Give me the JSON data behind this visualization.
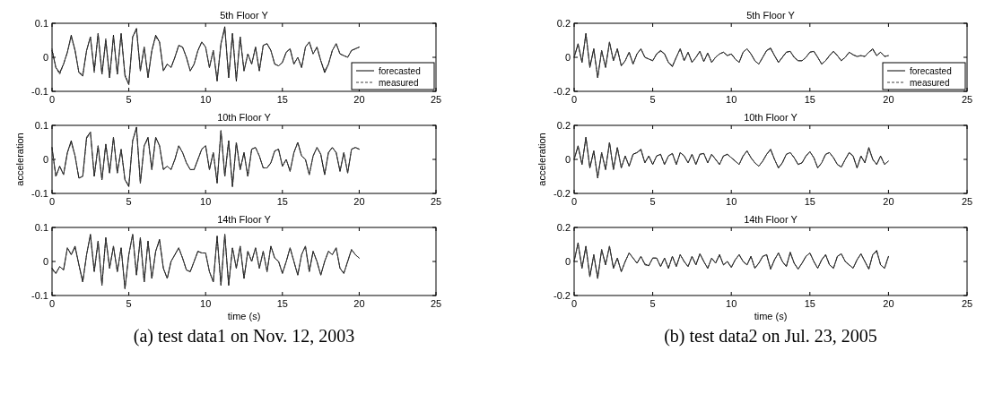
{
  "chart_data": [
    {
      "type": "line",
      "title": "5th Floor Y",
      "xlim": [
        0,
        25
      ],
      "xticks": [
        0,
        5,
        10,
        15,
        20,
        25
      ],
      "ylim": [
        -0.1,
        0.1
      ],
      "yticks": [
        -0.1,
        0,
        0.1
      ],
      "legend": "bottom right",
      "x": [
        0,
        0.25,
        0.5,
        0.75,
        1,
        1.25,
        1.5,
        1.75,
        2,
        2.25,
        2.5,
        2.75,
        3,
        3.25,
        3.5,
        3.75,
        4,
        4.25,
        4.5,
        4.75,
        5,
        5.25,
        5.5,
        5.75,
        6,
        6.25,
        6.5,
        6.75,
        7,
        7.25,
        7.5,
        7.75,
        8,
        8.25,
        8.5,
        8.75,
        9,
        9.25,
        9.5,
        9.75,
        10,
        10.25,
        10.5,
        10.75,
        11,
        11.25,
        11.5,
        11.75,
        12,
        12.25,
        12.5,
        12.75,
        13,
        13.25,
        13.5,
        13.75,
        14,
        14.25,
        14.5,
        14.75,
        15,
        15.25,
        15.5,
        15.75,
        16,
        16.25,
        16.5,
        16.75,
        17,
        17.25,
        17.5,
        17.75,
        18,
        18.25,
        18.5,
        18.75,
        19,
        19.25,
        19.5,
        19.75,
        20
      ],
      "series": [
        {
          "name": "forecasted",
          "color": "#000000",
          "line_style": "solid",
          "values": [
            0.02,
            -0.03,
            -0.045,
            -0.02,
            0.015,
            0.065,
            0.02,
            -0.045,
            -0.055,
            0.02,
            0.06,
            -0.04,
            0.07,
            -0.05,
            0.05,
            -0.06,
            0.065,
            -0.05,
            0.07,
            -0.055,
            -0.08,
            0.06,
            0.085,
            -0.04,
            0.03,
            -0.06,
            0.02,
            0.065,
            0.045,
            -0.04,
            -0.02,
            -0.03,
            0.0,
            0.035,
            0.03,
            0.0,
            -0.04,
            -0.02,
            0.02,
            0.045,
            0.03,
            -0.03,
            0.02,
            -0.07,
            0.04,
            0.09,
            -0.06,
            0.07,
            -0.07,
            0.06,
            -0.04,
            0.01,
            -0.02,
            0.03,
            -0.04,
            0.035,
            0.04,
            0.02,
            -0.02,
            -0.025,
            -0.015,
            0.015,
            0.025,
            -0.02,
            0.0,
            -0.03,
            0.03,
            0.045,
            0.01,
            0.03,
            -0.01,
            -0.045,
            -0.02,
            0.02,
            0.04,
            0.01,
            0.005,
            0.0,
            0.02,
            0.025,
            0.03
          ]
        },
        {
          "name": "measured",
          "color": "#404040",
          "line_style": "dashed",
          "values": [
            0.025,
            -0.03,
            -0.05,
            -0.02,
            0.015,
            0.06,
            0.02,
            -0.045,
            -0.05,
            0.02,
            0.06,
            -0.045,
            0.07,
            -0.05,
            0.055,
            -0.06,
            0.06,
            -0.05,
            0.07,
            -0.05,
            -0.08,
            0.06,
            0.08,
            -0.04,
            0.03,
            -0.055,
            0.02,
            0.06,
            0.045,
            -0.04,
            -0.02,
            -0.03,
            0.0,
            0.035,
            0.03,
            0.0,
            -0.04,
            -0.02,
            0.02,
            0.045,
            0.03,
            -0.03,
            0.02,
            -0.065,
            0.04,
            0.085,
            -0.06,
            0.07,
            -0.065,
            0.06,
            -0.04,
            0.01,
            -0.02,
            0.03,
            -0.04,
            0.035,
            0.04,
            0.02,
            -0.02,
            -0.025,
            -0.015,
            0.015,
            0.025,
            -0.02,
            0.0,
            -0.03,
            0.03,
            0.045,
            0.01,
            0.03,
            -0.01,
            -0.04,
            -0.02,
            0.02,
            0.04,
            0.01,
            0.005,
            0.0,
            0.02,
            0.025,
            0.03
          ]
        }
      ]
    },
    {
      "type": "line",
      "title": "10th Floor Y",
      "ylabel": "acceleration",
      "xlim": [
        0,
        25
      ],
      "xticks": [
        0,
        5,
        10,
        15,
        20,
        25
      ],
      "ylim": [
        -0.1,
        0.1
      ],
      "yticks": [
        -0.1,
        0,
        0.1
      ],
      "x": [
        0,
        0.25,
        0.5,
        0.75,
        1,
        1.25,
        1.5,
        1.75,
        2,
        2.25,
        2.5,
        2.75,
        3,
        3.25,
        3.5,
        3.75,
        4,
        4.25,
        4.5,
        4.75,
        5,
        5.25,
        5.5,
        5.75,
        6,
        6.25,
        6.5,
        6.75,
        7,
        7.25,
        7.5,
        7.75,
        8,
        8.25,
        8.5,
        8.75,
        9,
        9.25,
        9.5,
        9.75,
        10,
        10.25,
        10.5,
        10.75,
        11,
        11.25,
        11.5,
        11.75,
        12,
        12.25,
        12.5,
        12.75,
        13,
        13.25,
        13.5,
        13.75,
        14,
        14.25,
        14.5,
        14.75,
        15,
        15.25,
        15.5,
        15.75,
        16,
        16.25,
        16.5,
        16.75,
        17,
        17.25,
        17.5,
        17.75,
        18,
        18.25,
        18.5,
        18.75,
        19,
        19.25,
        19.5,
        19.75,
        20
      ],
      "series": [
        {
          "color": "#000000",
          "line_style": "solid",
          "values": [
            0.035,
            -0.05,
            -0.02,
            -0.045,
            0.02,
            0.055,
            0.01,
            -0.055,
            -0.05,
            0.065,
            0.08,
            -0.05,
            0.04,
            -0.06,
            0.045,
            -0.04,
            0.065,
            -0.04,
            0.03,
            -0.06,
            -0.08,
            0.055,
            0.095,
            -0.07,
            0.04,
            0.065,
            -0.03,
            0.065,
            0.04,
            -0.03,
            -0.02,
            -0.03,
            0.0,
            0.04,
            0.02,
            -0.01,
            -0.03,
            -0.03,
            0.0,
            0.03,
            0.04,
            -0.03,
            0.02,
            -0.07,
            0.085,
            -0.05,
            0.055,
            -0.08,
            0.05,
            -0.03,
            0.02,
            -0.05,
            0.03,
            0.035,
            0.01,
            -0.025,
            -0.025,
            -0.01,
            0.025,
            0.03,
            -0.02,
            0.0,
            -0.035,
            0.02,
            0.05,
            0.01,
            0.0,
            -0.045,
            0.01,
            0.035,
            0.015,
            -0.045,
            0.02,
            0.035,
            0.02,
            -0.035,
            0.02,
            -0.04,
            0.03,
            0.035,
            0.03
          ]
        },
        {
          "color": "#404040",
          "line_style": "dashed",
          "values": [
            0.03,
            -0.05,
            -0.02,
            -0.045,
            0.02,
            0.05,
            0.01,
            -0.055,
            -0.05,
            0.06,
            0.08,
            -0.05,
            0.04,
            -0.06,
            0.045,
            -0.04,
            0.065,
            -0.04,
            0.03,
            -0.06,
            -0.075,
            0.055,
            0.09,
            -0.07,
            0.04,
            0.06,
            -0.03,
            0.065,
            0.04,
            -0.03,
            -0.02,
            -0.03,
            0.0,
            0.04,
            0.02,
            -0.01,
            -0.03,
            -0.03,
            0.0,
            0.03,
            0.04,
            -0.03,
            0.02,
            -0.065,
            0.085,
            -0.05,
            0.055,
            -0.08,
            0.05,
            -0.03,
            0.02,
            -0.05,
            0.03,
            0.035,
            0.01,
            -0.025,
            -0.025,
            -0.01,
            0.025,
            0.03,
            -0.02,
            0.0,
            -0.035,
            0.02,
            0.05,
            0.01,
            0.0,
            -0.045,
            0.01,
            0.035,
            0.015,
            -0.045,
            0.02,
            0.035,
            0.02,
            -0.035,
            0.02,
            -0.04,
            0.03,
            0.035,
            0.03
          ]
        }
      ]
    },
    {
      "type": "line",
      "title": "14th Floor Y",
      "xlabel": "time (s)",
      "annotations": [
        "(a) test data1 on Nov. 12, 2003"
      ],
      "xlim": [
        0,
        25
      ],
      "xticks": [
        0,
        5,
        10,
        15,
        20,
        25
      ],
      "ylim": [
        -0.1,
        0.1
      ],
      "yticks": [
        -0.1,
        0,
        0.1
      ],
      "x": [
        0,
        0.25,
        0.5,
        0.75,
        1,
        1.25,
        1.5,
        1.75,
        2,
        2.25,
        2.5,
        2.75,
        3,
        3.25,
        3.5,
        3.75,
        4,
        4.25,
        4.5,
        4.75,
        5,
        5.25,
        5.5,
        5.75,
        6,
        6.25,
        6.5,
        6.75,
        7,
        7.25,
        7.5,
        7.75,
        8,
        8.25,
        8.5,
        8.75,
        9,
        9.25,
        9.5,
        9.75,
        10,
        10.25,
        10.5,
        10.75,
        11,
        11.25,
        11.5,
        11.75,
        12,
        12.25,
        12.5,
        12.75,
        13,
        13.25,
        13.5,
        13.75,
        14,
        14.25,
        14.5,
        14.75,
        15,
        15.25,
        15.5,
        15.75,
        16,
        16.25,
        16.5,
        16.75,
        17,
        17.25,
        17.5,
        17.75,
        18,
        18.25,
        18.5,
        18.75,
        19,
        19.25,
        19.5,
        19.75,
        20
      ],
      "series": [
        {
          "color": "#000000",
          "line_style": "solid",
          "values": [
            -0.02,
            -0.035,
            -0.015,
            -0.025,
            0.04,
            0.02,
            0.045,
            -0.01,
            -0.06,
            0.02,
            0.08,
            -0.03,
            0.06,
            -0.07,
            0.07,
            -0.02,
            0.045,
            -0.03,
            0.04,
            -0.08,
            0.02,
            0.08,
            -0.04,
            0.07,
            -0.06,
            0.06,
            -0.05,
            0.03,
            0.065,
            -0.02,
            -0.05,
            0.0,
            0.02,
            0.04,
            0.01,
            -0.025,
            -0.03,
            0.0,
            0.03,
            0.025,
            0.025,
            -0.03,
            -0.06,
            0.075,
            -0.07,
            0.08,
            -0.07,
            0.04,
            -0.02,
            0.045,
            -0.05,
            0.03,
            0.0,
            0.04,
            -0.02,
            0.03,
            -0.03,
            0.045,
            0.01,
            0.0,
            -0.035,
            0.0,
            0.04,
            0.0,
            -0.04,
            0.02,
            0.045,
            -0.03,
            0.03,
            0.0,
            -0.04,
            0.0,
            0.03,
            0.02,
            0.04,
            -0.02,
            -0.035,
            0.0,
            0.035,
            0.02,
            0.01
          ]
        },
        {
          "color": "#404040",
          "line_style": "dashed",
          "values": [
            -0.025,
            -0.035,
            -0.015,
            -0.025,
            0.04,
            0.02,
            0.04,
            -0.01,
            -0.06,
            0.02,
            0.075,
            -0.03,
            0.06,
            -0.07,
            0.07,
            -0.02,
            0.045,
            -0.03,
            0.04,
            -0.08,
            0.02,
            0.08,
            -0.04,
            0.07,
            -0.06,
            0.06,
            -0.05,
            0.03,
            0.06,
            -0.02,
            -0.05,
            0.0,
            0.02,
            0.04,
            0.01,
            -0.025,
            -0.03,
            0.0,
            0.03,
            0.025,
            0.025,
            -0.03,
            -0.06,
            0.07,
            -0.07,
            0.08,
            -0.07,
            0.04,
            -0.02,
            0.045,
            -0.05,
            0.03,
            0.0,
            0.04,
            -0.02,
            0.03,
            -0.03,
            0.045,
            0.01,
            0.0,
            -0.035,
            0.0,
            0.04,
            0.0,
            -0.04,
            0.02,
            0.045,
            -0.03,
            0.03,
            0.0,
            -0.04,
            0.0,
            0.03,
            0.02,
            0.04,
            -0.02,
            -0.035,
            0.0,
            0.035,
            0.02,
            0.01
          ]
        }
      ]
    },
    {
      "type": "line",
      "title": "5th Floor Y",
      "xlim": [
        0,
        25
      ],
      "xticks": [
        0,
        5,
        10,
        15,
        20,
        25
      ],
      "ylim": [
        -0.2,
        0.2
      ],
      "yticks": [
        -0.2,
        0,
        0.2
      ],
      "legend": "bottom right",
      "x": [
        0,
        0.25,
        0.5,
        0.75,
        1,
        1.25,
        1.5,
        1.75,
        2,
        2.25,
        2.5,
        2.75,
        3,
        3.25,
        3.5,
        3.75,
        4,
        4.25,
        4.5,
        4.75,
        5,
        5.25,
        5.5,
        5.75,
        6,
        6.25,
        6.5,
        6.75,
        7,
        7.25,
        7.5,
        7.75,
        8,
        8.25,
        8.5,
        8.75,
        9,
        9.25,
        9.5,
        9.75,
        10,
        10.25,
        10.5,
        10.75,
        11,
        11.25,
        11.5,
        11.75,
        12,
        12.25,
        12.5,
        12.75,
        13,
        13.25,
        13.5,
        13.75,
        14,
        14.25,
        14.5,
        14.75,
        15,
        15.25,
        15.5,
        15.75,
        16,
        16.25,
        16.5,
        16.75,
        17,
        17.25,
        17.5,
        17.75,
        18,
        18.25,
        18.5,
        18.75,
        19,
        19.25,
        19.5,
        19.75,
        20
      ],
      "series": [
        {
          "name": "forecasted",
          "color": "#000000",
          "line_style": "solid",
          "values": [
            0.0,
            0.08,
            -0.03,
            0.14,
            -0.06,
            0.05,
            -0.12,
            0.04,
            -0.06,
            0.09,
            -0.02,
            0.05,
            -0.05,
            -0.02,
            0.03,
            -0.04,
            0.02,
            0.05,
            0.0,
            -0.01,
            -0.02,
            0.02,
            0.04,
            0.02,
            -0.03,
            -0.055,
            0.0,
            0.05,
            -0.02,
            0.03,
            -0.03,
            0.0,
            0.035,
            -0.025,
            0.025,
            -0.03,
            0.0,
            0.02,
            0.03,
            0.01,
            0.02,
            -0.01,
            -0.03,
            0.03,
            0.05,
            0.02,
            -0.02,
            -0.04,
            0.0,
            0.04,
            0.055,
            0.01,
            -0.03,
            0.0,
            0.03,
            0.035,
            0.0,
            -0.02,
            -0.02,
            0.0,
            0.03,
            0.035,
            0.0,
            -0.04,
            -0.02,
            0.01,
            0.035,
            0.01,
            -0.02,
            0.0,
            0.03,
            0.015,
            0.005,
            0.01,
            0.005,
            0.03,
            0.05,
            0.01,
            0.03,
            0.005,
            0.01
          ]
        },
        {
          "name": "measured",
          "color": "#404040",
          "line_style": "dashed",
          "values": [
            0.0,
            0.075,
            -0.03,
            0.14,
            -0.055,
            0.05,
            -0.12,
            0.04,
            -0.06,
            0.09,
            -0.02,
            0.05,
            -0.05,
            -0.02,
            0.03,
            -0.04,
            0.02,
            0.05,
            0.0,
            -0.01,
            -0.02,
            0.02,
            0.035,
            0.02,
            -0.03,
            -0.05,
            0.0,
            0.05,
            -0.02,
            0.03,
            -0.03,
            0.0,
            0.035,
            -0.025,
            0.025,
            -0.03,
            0.0,
            0.02,
            0.03,
            0.01,
            0.02,
            -0.01,
            -0.03,
            0.03,
            0.05,
            0.02,
            -0.02,
            -0.04,
            0.0,
            0.04,
            0.05,
            0.01,
            -0.03,
            0.0,
            0.03,
            0.035,
            0.0,
            -0.02,
            -0.02,
            0.0,
            0.03,
            0.035,
            0.0,
            -0.04,
            -0.02,
            0.01,
            0.035,
            0.01,
            -0.02,
            0.0,
            0.03,
            0.015,
            0.005,
            0.01,
            0.005,
            0.03,
            0.045,
            0.01,
            0.03,
            0.005,
            0.01
          ]
        }
      ]
    },
    {
      "type": "line",
      "title": "10th Floor Y",
      "ylabel": "acceleration",
      "xlim": [
        0,
        25
      ],
      "xticks": [
        0,
        5,
        10,
        15,
        20,
        25
      ],
      "ylim": [
        -0.2,
        0.2
      ],
      "yticks": [
        -0.2,
        0,
        0.2
      ],
      "x": [
        0,
        0.25,
        0.5,
        0.75,
        1,
        1.25,
        1.5,
        1.75,
        2,
        2.25,
        2.5,
        2.75,
        3,
        3.25,
        3.5,
        3.75,
        4,
        4.25,
        4.5,
        4.75,
        5,
        5.25,
        5.5,
        5.75,
        6,
        6.25,
        6.5,
        6.75,
        7,
        7.25,
        7.5,
        7.75,
        8,
        8.25,
        8.5,
        8.75,
        9,
        9.25,
        9.5,
        9.75,
        10,
        10.25,
        10.5,
        10.75,
        11,
        11.25,
        11.5,
        11.75,
        12,
        12.25,
        12.5,
        12.75,
        13,
        13.25,
        13.5,
        13.75,
        14,
        14.25,
        14.5,
        14.75,
        15,
        15.25,
        15.5,
        15.75,
        16,
        16.25,
        16.5,
        16.75,
        17,
        17.25,
        17.5,
        17.75,
        18,
        18.25,
        18.5,
        18.75,
        19,
        19.25,
        19.5,
        19.75,
        20
      ],
      "series": [
        {
          "color": "#000000",
          "line_style": "solid",
          "values": [
            0.0,
            0.08,
            -0.03,
            0.13,
            -0.05,
            0.05,
            -0.11,
            0.04,
            -0.06,
            0.1,
            -0.06,
            0.07,
            -0.05,
            0.02,
            -0.04,
            0.03,
            0.04,
            0.06,
            -0.02,
            0.02,
            -0.03,
            0.02,
            0.03,
            -0.03,
            0.02,
            0.035,
            -0.03,
            0.04,
            0.02,
            -0.02,
            0.03,
            -0.03,
            0.03,
            0.035,
            -0.02,
            0.03,
            0.0,
            -0.03,
            0.02,
            0.03,
            0.01,
            -0.01,
            -0.03,
            0.02,
            0.05,
            0.01,
            -0.02,
            -0.04,
            -0.01,
            0.03,
            0.06,
            0.0,
            -0.05,
            -0.02,
            0.03,
            0.04,
            0.01,
            -0.03,
            -0.02,
            0.02,
            0.045,
            0.01,
            -0.05,
            -0.02,
            0.03,
            0.04,
            0.01,
            -0.03,
            -0.045,
            0.0,
            0.04,
            0.02,
            -0.05,
            0.02,
            -0.02,
            0.07,
            0.0,
            -0.03,
            0.02,
            -0.03,
            -0.01
          ]
        },
        {
          "color": "#404040",
          "line_style": "dashed",
          "values": [
            0.0,
            0.075,
            -0.03,
            0.13,
            -0.05,
            0.05,
            -0.105,
            0.04,
            -0.06,
            0.1,
            -0.06,
            0.07,
            -0.05,
            0.02,
            -0.04,
            0.03,
            0.04,
            0.055,
            -0.02,
            0.02,
            -0.03,
            0.02,
            0.03,
            -0.03,
            0.02,
            0.035,
            -0.03,
            0.04,
            0.02,
            -0.02,
            0.03,
            -0.03,
            0.03,
            0.035,
            -0.02,
            0.03,
            0.0,
            -0.03,
            0.02,
            0.03,
            0.01,
            -0.01,
            -0.03,
            0.02,
            0.05,
            0.01,
            -0.02,
            -0.04,
            -0.01,
            0.03,
            0.055,
            0.0,
            -0.05,
            -0.02,
            0.03,
            0.04,
            0.01,
            -0.03,
            -0.02,
            0.02,
            0.045,
            0.01,
            -0.05,
            -0.02,
            0.03,
            0.04,
            0.01,
            -0.03,
            -0.045,
            0.0,
            0.04,
            0.02,
            -0.05,
            0.02,
            -0.02,
            0.065,
            0.0,
            -0.03,
            0.02,
            -0.03,
            -0.01
          ]
        }
      ]
    },
    {
      "type": "line",
      "title": "14th Floor Y",
      "xlabel": "time (s)",
      "annotations": [
        "(b) test data2 on Jul. 23, 2005"
      ],
      "xlim": [
        0,
        25
      ],
      "xticks": [
        0,
        5,
        10,
        15,
        20,
        25
      ],
      "ylim": [
        -0.2,
        0.2
      ],
      "yticks": [
        -0.2,
        0,
        0.2
      ],
      "x": [
        0,
        0.25,
        0.5,
        0.75,
        1,
        1.25,
        1.5,
        1.75,
        2,
        2.25,
        2.5,
        2.75,
        3,
        3.25,
        3.5,
        3.75,
        4,
        4.25,
        4.5,
        4.75,
        5,
        5.25,
        5.5,
        5.75,
        6,
        6.25,
        6.5,
        6.75,
        7,
        7.25,
        7.5,
        7.75,
        8,
        8.25,
        8.5,
        8.75,
        9,
        9.25,
        9.5,
        9.75,
        10,
        10.25,
        10.5,
        10.75,
        11,
        11.25,
        11.5,
        11.75,
        12,
        12.25,
        12.5,
        12.75,
        13,
        13.25,
        13.5,
        13.75,
        14,
        14.25,
        14.5,
        14.75,
        15,
        15.25,
        15.5,
        15.75,
        16,
        16.25,
        16.5,
        16.75,
        17,
        17.25,
        17.5,
        17.75,
        18,
        18.25,
        18.5,
        18.75,
        19,
        19.25,
        19.5,
        19.75,
        20
      ],
      "series": [
        {
          "color": "#000000",
          "line_style": "solid",
          "values": [
            0.0,
            0.11,
            -0.04,
            0.09,
            -0.09,
            0.04,
            -0.1,
            0.07,
            -0.02,
            0.09,
            -0.04,
            0.02,
            -0.06,
            0.0,
            0.05,
            0.02,
            -0.01,
            0.03,
            -0.015,
            -0.025,
            0.02,
            0.02,
            -0.03,
            0.02,
            -0.04,
            0.03,
            -0.03,
            0.04,
            0.0,
            -0.03,
            0.03,
            -0.02,
            0.045,
            0.0,
            -0.04,
            0.02,
            -0.01,
            0.04,
            -0.02,
            0.0,
            -0.035,
            0.01,
            0.04,
            0.0,
            -0.02,
            0.03,
            -0.04,
            -0.01,
            0.03,
            0.04,
            -0.045,
            0.01,
            0.05,
            0.0,
            -0.03,
            0.055,
            -0.01,
            -0.045,
            -0.01,
            0.03,
            0.05,
            0.0,
            -0.04,
            0.01,
            0.04,
            -0.02,
            -0.04,
            0.03,
            0.045,
            0.0,
            -0.02,
            -0.04,
            0.01,
            0.045,
            0.0,
            -0.045,
            0.04,
            0.065,
            -0.02,
            -0.04,
            0.03
          ]
        },
        {
          "color": "#404040",
          "line_style": "dashed",
          "values": [
            0.0,
            0.105,
            -0.04,
            0.09,
            -0.09,
            0.04,
            -0.1,
            0.07,
            -0.02,
            0.09,
            -0.04,
            0.02,
            -0.06,
            0.0,
            0.05,
            0.02,
            -0.01,
            0.03,
            -0.02,
            -0.025,
            0.02,
            0.02,
            -0.03,
            0.02,
            -0.04,
            0.03,
            -0.03,
            0.04,
            0.0,
            -0.03,
            0.03,
            -0.02,
            0.045,
            0.0,
            -0.04,
            0.02,
            -0.01,
            0.04,
            -0.02,
            0.0,
            -0.035,
            0.01,
            0.04,
            0.0,
            -0.02,
            0.03,
            -0.04,
            -0.01,
            0.03,
            0.04,
            -0.045,
            0.01,
            0.05,
            0.0,
            -0.03,
            0.05,
            -0.01,
            -0.045,
            -0.01,
            0.03,
            0.05,
            0.0,
            -0.04,
            0.01,
            0.04,
            -0.02,
            -0.04,
            0.03,
            0.045,
            0.0,
            -0.02,
            -0.04,
            0.01,
            0.045,
            0.0,
            -0.045,
            0.04,
            0.06,
            -0.02,
            -0.04,
            0.03
          ]
        }
      ]
    }
  ]
}
